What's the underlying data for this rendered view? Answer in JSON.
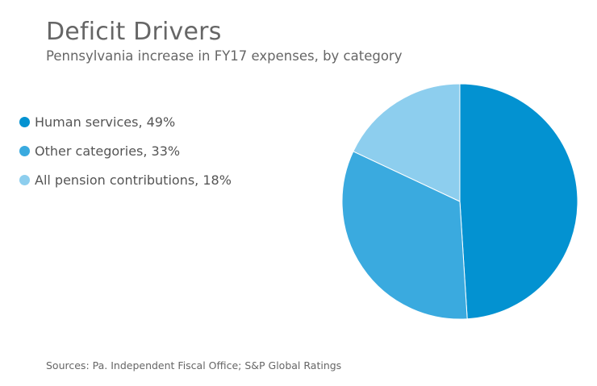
{
  "chart_data": {
    "type": "pie",
    "title": "Deficit Drivers",
    "subtitle": "Pennsylvania increase in FY17 expenses, by category",
    "slices": [
      {
        "label": "Human services",
        "value": 49,
        "color": "#0392d1"
      },
      {
        "label": "Other categories",
        "value": 33,
        "color": "#3aaadf"
      },
      {
        "label": "All pension contributions",
        "value": 18,
        "color": "#8dceee"
      }
    ],
    "legend": {
      "placement": "left",
      "entries": [
        {
          "text": "Human services, 49%",
          "color": "#0392d1"
        },
        {
          "text": "Other categories, 33%",
          "color": "#3aaadf"
        },
        {
          "text": "All pension contributions, 18%",
          "color": "#8dceee"
        }
      ]
    },
    "source": "Sources: Pa. Independent Fiscal Office; S&P Global Ratings"
  }
}
